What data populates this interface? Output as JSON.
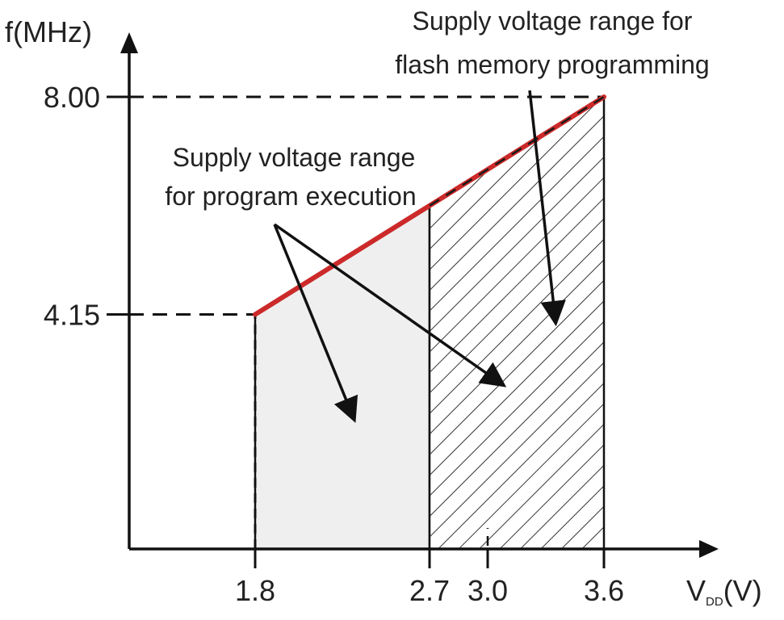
{
  "chart_data": {
    "type": "area",
    "ylabel": "f(MHz)",
    "xlabel_main": "V",
    "xlabel_sub": "DD",
    "xlabel_unit": "(V)",
    "x_ticks": [
      "1.8",
      "2.7",
      "3.0",
      "3.6"
    ],
    "y_ticks": [
      "4.15",
      "8.00"
    ],
    "xlim": [
      1.15,
      4.1
    ],
    "ylim": [
      0,
      9.0
    ],
    "line": {
      "x": [
        1.8,
        3.6
      ],
      "y": [
        4.15,
        8.0
      ]
    },
    "regions": [
      {
        "x_start": 1.8,
        "x_end": 2.7,
        "fill": "light-gray"
      },
      {
        "x_start": 2.7,
        "x_end": 3.6,
        "fill": "diagonal-hatch"
      }
    ],
    "annotations": [
      {
        "line1": "Supply voltage range",
        "line2": "for program execution"
      },
      {
        "line1": "Supply voltage range for",
        "line2": "flash memory programming"
      }
    ],
    "colors": {
      "line": "#cc2a2a",
      "execution_fill": "#efefef",
      "hatch": "#333333",
      "axis": "#111111"
    }
  }
}
